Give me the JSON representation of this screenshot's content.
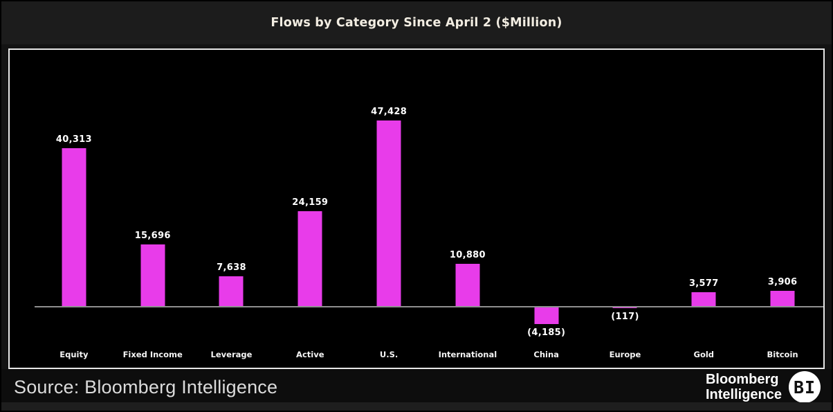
{
  "title": "Flows by Category Since April 2 ($Million)",
  "footer": {
    "source_label": "Source: Bloomberg Intelligence",
    "logo_line1": "Bloomberg",
    "logo_line2": "Intelligence",
    "logo_badge": "BI"
  },
  "colors": {
    "bar": "#E83CEA",
    "plot_background": "#000000",
    "header_background": "#1c1c1c",
    "axis_line": "#8f8f8f",
    "value_label": "#ffffff",
    "title_text": "#f2ede2"
  },
  "chart_data": {
    "type": "bar",
    "title": "Flows by Category Since April 2 ($Million)",
    "categories": [
      "Equity",
      "Fixed Income",
      "Leverage",
      "Active",
      "U.S.",
      "International",
      "China",
      "Europe",
      "Gold",
      "Bitcoin"
    ],
    "values": [
      40313,
      15696,
      7638,
      24159,
      47428,
      10880,
      -4185,
      -117,
      3577,
      3906
    ],
    "value_labels": [
      "40,313",
      "15,696",
      "7,638",
      "24,159",
      "47,428",
      "10,880",
      "(4,185)",
      "(117)",
      "3,577",
      "3,906"
    ],
    "bar_color": "#E83CEA",
    "xlabel": "",
    "ylabel": "",
    "ylim": [
      -6000,
      52000
    ],
    "grid": false,
    "legend": false,
    "negative_format": "parentheses",
    "baseline": 0
  }
}
